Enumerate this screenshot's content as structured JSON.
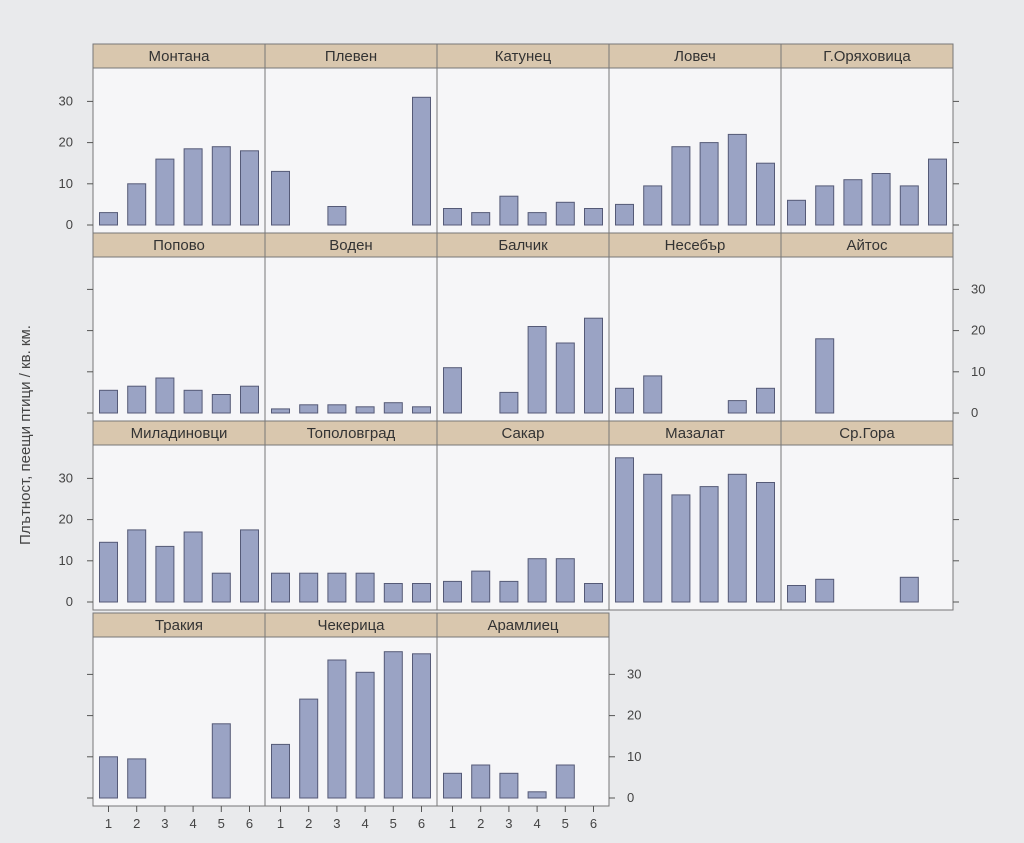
{
  "chart_data": {
    "type": "bar",
    "ylabel": "Плътност, пеещи птици / кв. км.",
    "ylim": [
      0,
      38
    ],
    "yticks": [
      0,
      10,
      20,
      30
    ],
    "categories": [
      1,
      2,
      3,
      4,
      5,
      6
    ],
    "grid": false,
    "panels": [
      {
        "name": "Монтана",
        "values": [
          3,
          10,
          16,
          18.5,
          19,
          18
        ]
      },
      {
        "name": "Плевен",
        "values": [
          13,
          0,
          4.5,
          0,
          0,
          31
        ]
      },
      {
        "name": "Катунец",
        "values": [
          4,
          3,
          7,
          3,
          5.5,
          4
        ]
      },
      {
        "name": "Ловеч",
        "values": [
          5,
          9.5,
          19,
          20,
          22,
          15
        ]
      },
      {
        "name": "Г.Оряховица",
        "values": [
          6,
          9.5,
          11,
          12.5,
          9.5,
          16
        ]
      },
      {
        "name": "Попово",
        "values": [
          5.5,
          6.5,
          8.5,
          5.5,
          4.5,
          6.5
        ]
      },
      {
        "name": "Воден",
        "values": [
          1,
          2,
          2,
          1.5,
          2.5,
          1.5
        ]
      },
      {
        "name": "Балчик",
        "values": [
          11,
          0,
          5,
          21,
          17,
          23
        ]
      },
      {
        "name": "Несебър",
        "values": [
          6,
          9,
          0,
          0,
          3,
          6
        ]
      },
      {
        "name": "Айтос",
        "values": [
          0,
          18,
          0,
          0,
          0,
          0
        ]
      },
      {
        "name": "Миладиновци",
        "values": [
          14.5,
          17.5,
          13.5,
          17,
          7,
          17.5
        ]
      },
      {
        "name": "Тополовград",
        "values": [
          7,
          7,
          7,
          7,
          4.5,
          4.5
        ]
      },
      {
        "name": "Сакар",
        "values": [
          5,
          7.5,
          5,
          10.5,
          10.5,
          4.5
        ]
      },
      {
        "name": "Мазалат",
        "values": [
          35,
          31,
          26,
          28,
          31,
          29
        ]
      },
      {
        "name": "Ср.Гора",
        "values": [
          4,
          5.5,
          0,
          0,
          6,
          0
        ]
      },
      {
        "name": "Тракия",
        "values": [
          10,
          9.5,
          0,
          0,
          18,
          0
        ]
      },
      {
        "name": "Чекерица",
        "values": [
          13,
          24,
          33.5,
          30.5,
          35.5,
          35
        ]
      },
      {
        "name": "Арамлиец",
        "values": [
          6,
          8,
          6,
          1.5,
          8,
          0
        ]
      }
    ]
  }
}
